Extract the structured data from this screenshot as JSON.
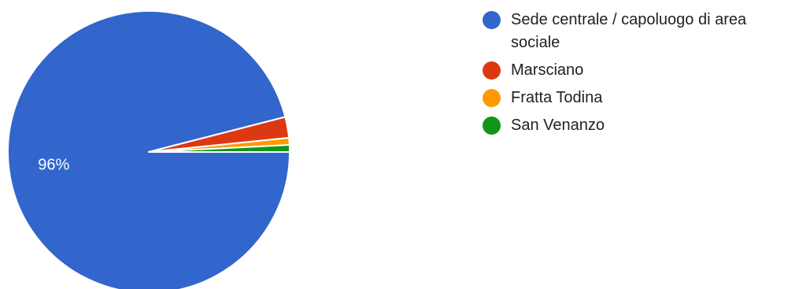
{
  "chart_data": {
    "type": "pie",
    "categories": [
      "Sede centrale / capoluogo di area sociale",
      "Marsciano",
      "Fratta Todina",
      "San Venanzo"
    ],
    "values": [
      96,
      2.4,
      0.8,
      0.8
    ],
    "colors": [
      "#3366cc",
      "#dc3912",
      "#ff9900",
      "#109618"
    ],
    "slice_labels": [
      "96%",
      "",
      "",
      ""
    ],
    "legend_position": "right",
    "title": ""
  }
}
